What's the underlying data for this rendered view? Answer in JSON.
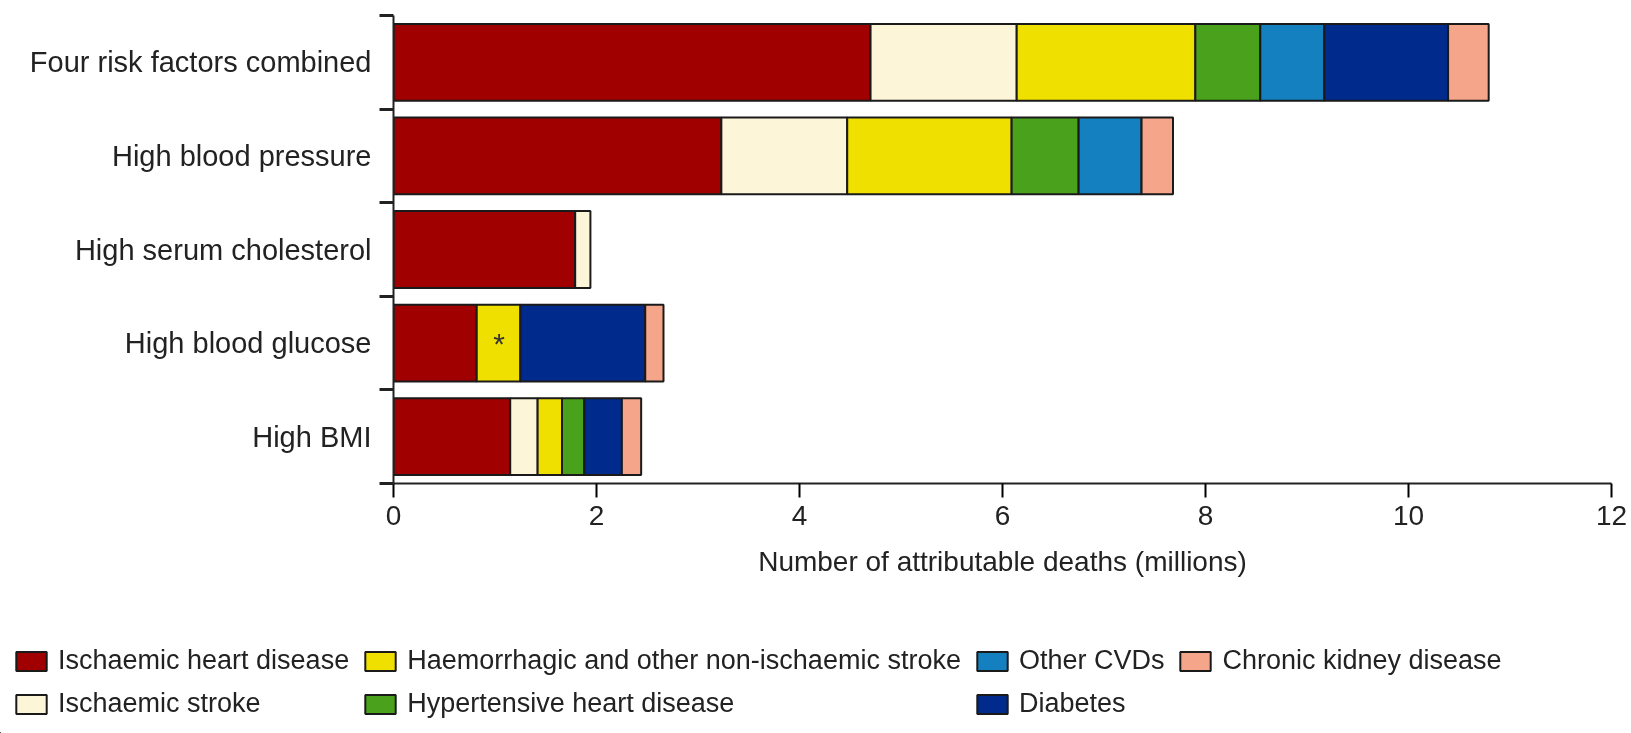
{
  "chart_data": {
    "type": "bar",
    "orientation": "horizontal",
    "stacked": true,
    "xlabel": "Number of attributable deaths (millions)",
    "categories": [
      "Four risk factors combined",
      "High blood pressure",
      "High serum cholesterol",
      "High blood glucose",
      "High BMI"
    ],
    "series": [
      {
        "name": "Ischaemic heart disease",
        "color": "#a00000",
        "values": [
          4.7,
          3.23,
          1.79,
          0.82,
          1.15
        ]
      },
      {
        "name": "Ischaemic stroke",
        "color": "#fdf5d8",
        "values": [
          1.44,
          1.24,
          0.15,
          null,
          0.27
        ]
      },
      {
        "name": "Haemorrhagic and other non-ischaemic stroke",
        "color": "#f0e000",
        "values": [
          1.76,
          1.62,
          null,
          0.43,
          0.24
        ]
      },
      {
        "name": "Hypertensive heart disease",
        "color": "#4aa21c",
        "values": [
          0.64,
          0.66,
          null,
          null,
          0.22
        ]
      },
      {
        "name": "Other CVDs",
        "color": "#1580c0",
        "values": [
          0.63,
          0.62,
          null,
          null,
          null
        ]
      },
      {
        "name": "Diabetes",
        "color": "#002a8c",
        "values": [
          1.22,
          null,
          null,
          1.23,
          0.37
        ]
      },
      {
        "name": "Chronic kidney disease",
        "color": "#f5a58a",
        "values": [
          0.4,
          0.31,
          null,
          0.18,
          0.19
        ]
      }
    ],
    "xlim": [
      0,
      12
    ],
    "xticks": [
      0,
      2,
      4,
      6,
      8,
      10,
      12
    ],
    "annotations": [
      {
        "text": "*",
        "x": 1.04,
        "y": "High blood glucose"
      }
    ],
    "legend": "bottom"
  }
}
